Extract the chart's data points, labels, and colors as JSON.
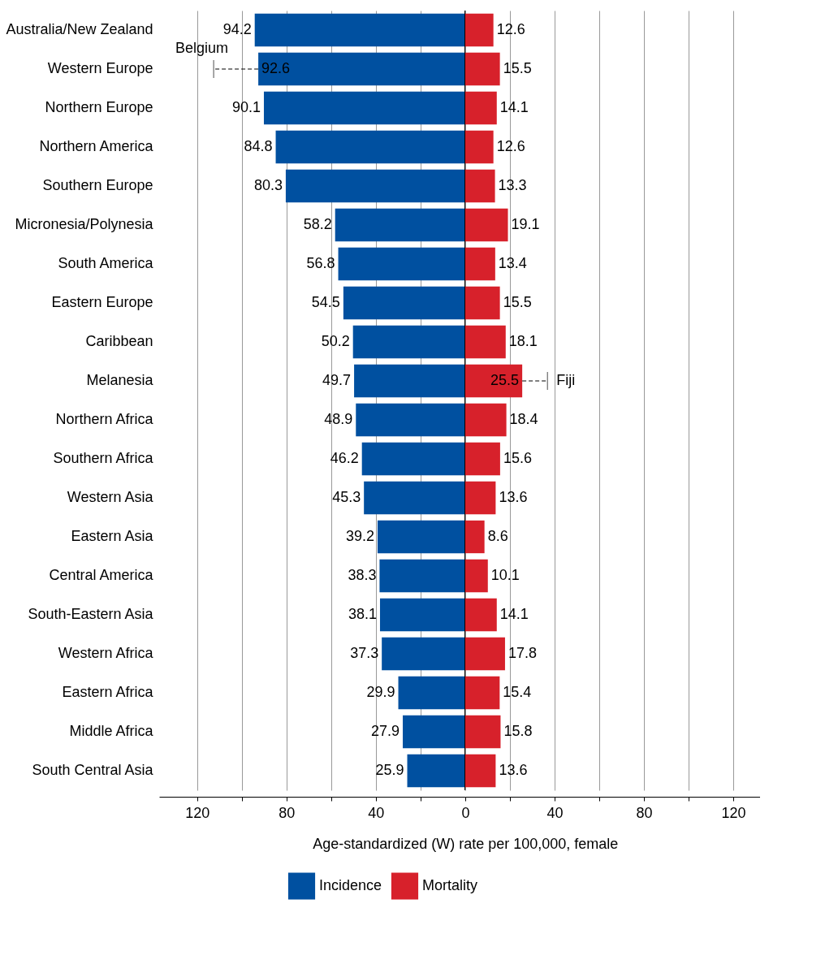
{
  "chart_data": [
    {
      "type": "bar",
      "orientation": "horizontal",
      "xlabel": "Age-standardized (W) rate per 100,000, female",
      "data_labels": true,
      "categories": [
        "Australia/New Zealand",
        "Western Europe",
        "Northern Europe",
        "Northern America",
        "Southern Europe",
        "Micronesia/Polynesia",
        "South America",
        "Eastern Europe",
        "Caribbean",
        "Melanesia",
        "Northern Africa",
        "Southern Africa",
        "Western Asia",
        "Eastern Asia",
        "Central America",
        "South-Eastern Asia",
        "Western Africa",
        "Eastern Africa",
        "Middle Africa",
        "South Central Asia"
      ],
      "series": [
        {
          "name": "Incidence",
          "color": "#0050a0",
          "values": [
            94.2,
            92.6,
            90.1,
            84.8,
            80.3,
            58.2,
            56.8,
            54.5,
            50.2,
            49.7,
            48.9,
            46.2,
            45.3,
            39.2,
            38.3,
            38.1,
            37.3,
            29.9,
            27.9,
            25.9
          ],
          "errors": [
            null,
            [
              92.6,
              112.6
            ],
            null,
            null,
            null,
            null,
            null,
            null,
            null,
            null,
            null,
            null,
            null,
            null,
            null,
            null,
            null,
            null,
            null,
            null
          ]
        }
      ],
      "xlim": [
        137,
        0
      ],
      "xticks": [
        120,
        {
          "value": 100,
          "label": null
        },
        80,
        {
          "value": 60,
          "label": null
        },
        40,
        {
          "value": 20,
          "label": null
        }
      ],
      "grid": "x",
      "legend": "bottom",
      "ref_lines": [
        {
          "axis": "x",
          "value": 0,
          "color": "#000000"
        }
      ],
      "annotations": [
        {
          "text": "Belgium",
          "x": 112.6,
          "y": "Western Europe"
        }
      ]
    },
    {
      "type": "bar",
      "orientation": "horizontal",
      "data_labels": true,
      "tick_labels": "x",
      "categories": [
        "Australia/New Zealand",
        "Western Europe",
        "Northern Europe",
        "Northern America",
        "Southern Europe",
        "Micronesia/Polynesia",
        "South America",
        "Eastern Europe",
        "Caribbean",
        "Melanesia",
        "Northern Africa",
        "Southern Africa",
        "Western Asia",
        "Eastern Asia",
        "Central America",
        "South-Eastern Asia",
        "Western Africa",
        "Eastern Africa",
        "Middle Africa",
        "South Central Asia"
      ],
      "series": [
        {
          "name": "Mortality",
          "color": "#d7212b",
          "values": [
            12.6,
            15.5,
            14.1,
            12.6,
            13.3,
            19.1,
            13.4,
            15.5,
            18.1,
            25.5,
            18.4,
            15.6,
            13.6,
            8.6,
            10.1,
            14.1,
            17.8,
            15.4,
            15.8,
            13.6
          ],
          "errors": [
            null,
            null,
            null,
            null,
            null,
            null,
            null,
            null,
            null,
            [
              25.5,
              36.8
            ],
            null,
            null,
            null,
            null,
            null,
            null,
            null,
            null,
            null,
            null
          ]
        }
      ],
      "xlim": [
        0,
        132
      ],
      "xticks": [
        0,
        {
          "value": 20,
          "label": null
        },
        40,
        {
          "value": 60,
          "label": null
        },
        80,
        {
          "value": 100,
          "label": null
        },
        120
      ],
      "grid": "x",
      "legend": "bottom",
      "annotations": [
        {
          "text": "Fiji",
          "x": 36.8,
          "y": "Melanesia"
        }
      ]
    }
  ]
}
